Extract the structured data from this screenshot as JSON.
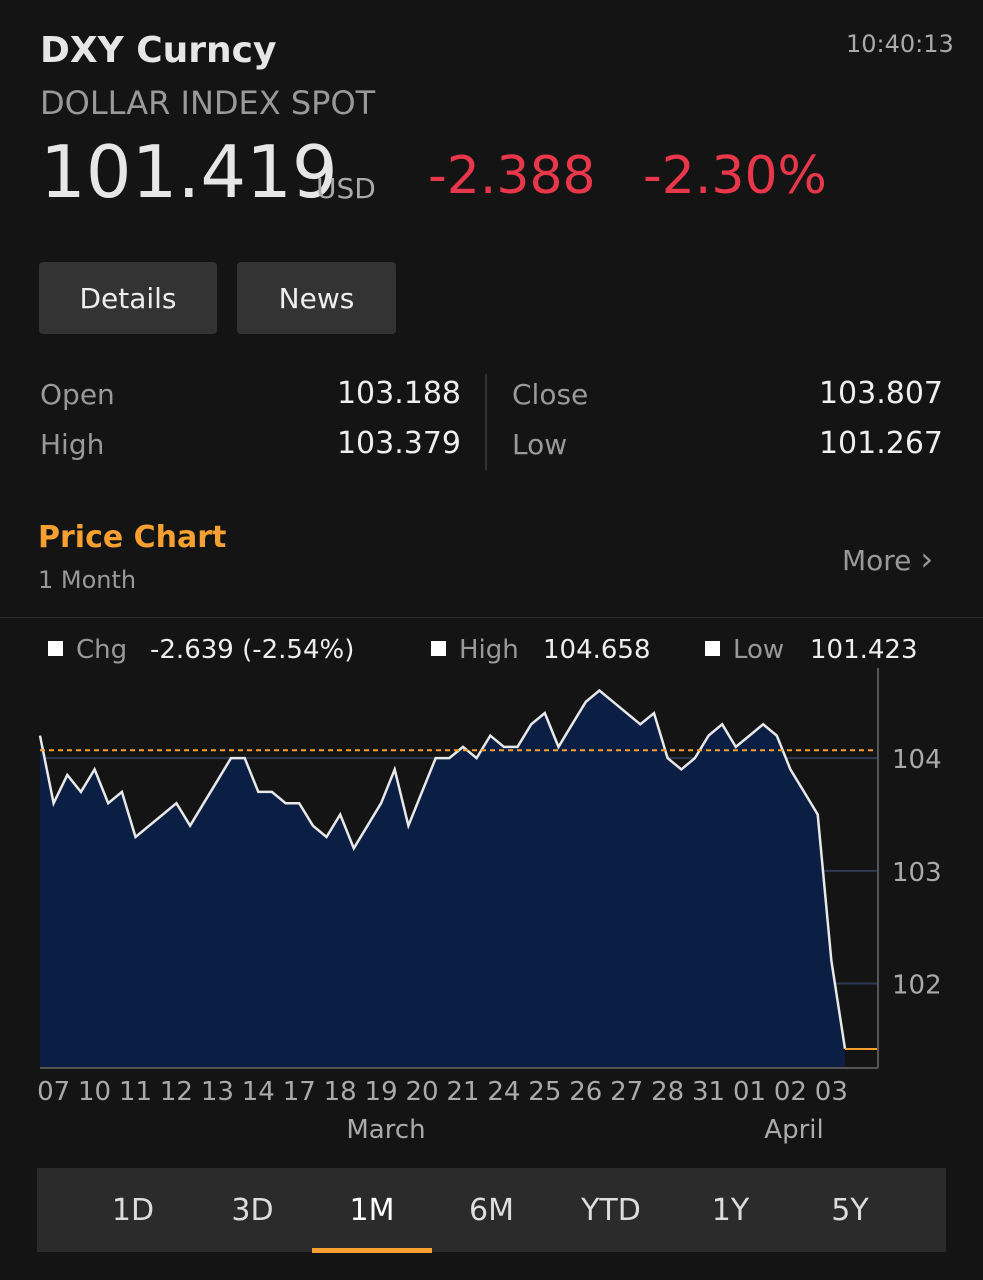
{
  "header": {
    "ticker": "DXY Curncy",
    "name": "DOLLAR INDEX SPOT",
    "time": "10:40:13",
    "price": 101.419,
    "currency": "USD",
    "change": -2.388,
    "change_pct": "-2.30%"
  },
  "buttons": [
    "Details",
    "News"
  ],
  "stats": [
    {
      "label": "Open",
      "value": 103.188
    },
    {
      "label": "High",
      "value": 103.379
    },
    {
      "label": "Close",
      "value": 103.807
    },
    {
      "label": "Low",
      "value": 101.267
    }
  ],
  "section": {
    "title": "Price Chart",
    "subtitle": "1 Month",
    "more": "More"
  },
  "chart_data": {
    "type": "area",
    "color": "#0b1f45",
    "line_color": "#e8e8e8",
    "legend": [
      {
        "name": "Chg",
        "value": "-2.639 (-2.54%)"
      },
      {
        "name": "High",
        "value": 104.658
      },
      {
        "name": "Low",
        "value": 101.423
      }
    ],
    "categories": [
      null,
      "07",
      null,
      null,
      "10",
      null,
      null,
      "11",
      null,
      null,
      "12",
      null,
      null,
      "13",
      null,
      null,
      "14",
      null,
      null,
      "17",
      null,
      null,
      "18",
      null,
      null,
      "19",
      null,
      null,
      "20",
      null,
      null,
      "21",
      null,
      null,
      "24",
      null,
      null,
      "25",
      null,
      null,
      "26",
      null,
      null,
      "27",
      null,
      null,
      "28",
      null,
      null,
      "31",
      null,
      null,
      "01",
      null,
      null,
      "02",
      null,
      null,
      "03",
      null
    ],
    "values": [
      104.2,
      103.6,
      103.85,
      103.7,
      103.9,
      103.6,
      103.7,
      103.3,
      103.4,
      103.5,
      103.6,
      103.4,
      103.6,
      103.8,
      104.0,
      104.0,
      103.7,
      103.7,
      103.6,
      103.6,
      103.4,
      103.3,
      103.5,
      103.2,
      103.4,
      103.6,
      103.9,
      103.4,
      103.7,
      104.0,
      104.0,
      104.1,
      104.0,
      104.2,
      104.1,
      104.1,
      104.3,
      104.4,
      104.1,
      104.3,
      104.5,
      104.6,
      104.5,
      104.4,
      104.3,
      104.4,
      104.0,
      103.9,
      104.0,
      104.2,
      104.3,
      104.1,
      104.2,
      104.3,
      104.2,
      103.9,
      103.7,
      103.5,
      102.2,
      101.42
    ],
    "reference_value": 104.07,
    "ylim": [
      101.25,
      104.8
    ],
    "yticks": [
      102,
      103,
      104
    ],
    "months": [
      "March",
      "April"
    ]
  },
  "tabs": [
    "1D",
    "3D",
    "1M",
    "6M",
    "YTD",
    "1Y",
    "5Y"
  ],
  "active_tab": 2
}
